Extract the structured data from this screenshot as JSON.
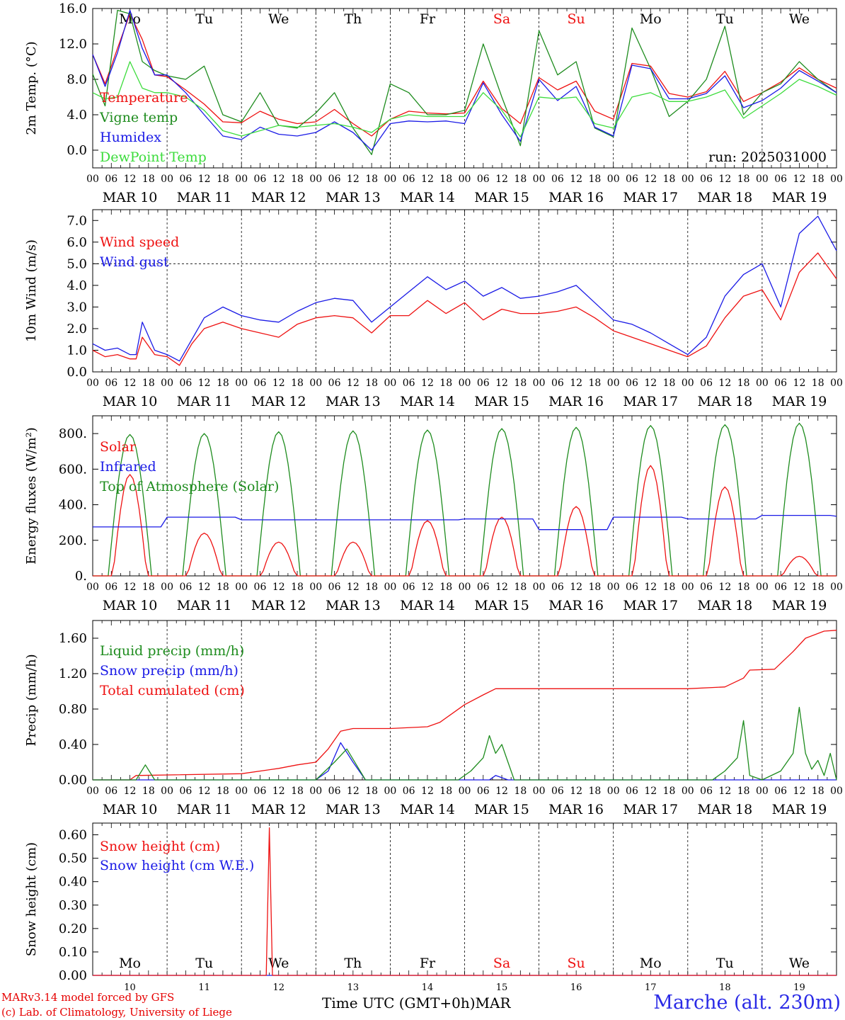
{
  "colors": {
    "red": "#ee1111",
    "green": "#1e8c1e",
    "blue": "#1a1ae6",
    "lightgreen": "#3cdc3c",
    "grid": "#000000"
  },
  "days": {
    "dow": [
      "Mo",
      "Tu",
      "We",
      "Th",
      "Fr",
      "Sa",
      "Su",
      "Mo",
      "Tu",
      "We"
    ],
    "dow_colors": [
      "#000000",
      "#000000",
      "#000000",
      "#000000",
      "#000000",
      "#ee1111",
      "#ee1111",
      "#000000",
      "#000000",
      "#000000"
    ],
    "dates": [
      "MAR 10",
      "MAR 11",
      "MAR 12",
      "MAR 13",
      "MAR 14",
      "MAR 15",
      "MAR 16",
      "MAR 17",
      "MAR 18",
      "MAR 19"
    ],
    "day_numbers": [
      "10",
      "11",
      "12",
      "13",
      "14",
      "15",
      "16",
      "17",
      "18",
      "19"
    ],
    "hour_ticks": [
      "00",
      "06",
      "12",
      "18"
    ],
    "final_hour": "00"
  },
  "run_label": "run: 2025031000",
  "xlabel": "Time UTC (GMT+0h)",
  "month_label": "MAR",
  "credits": {
    "line1": "MARv3.14 model forced by GFS",
    "line2": "(c) Lab. of Climatology, University of Liege"
  },
  "station": "Marche (alt. 230m)",
  "chart_data": [
    {
      "type": "line",
      "ylabel": "2m Temp. (°C)",
      "ylim": [
        -2.0,
        16.0
      ],
      "yticks": [
        "0.0",
        "4.0",
        "8.0",
        "12.0",
        "16.0"
      ],
      "hours": [
        0,
        4,
        8,
        12,
        16,
        20,
        24,
        30,
        36,
        42,
        48,
        54,
        60,
        66,
        72,
        78,
        84,
        90,
        96,
        102,
        108,
        114,
        120,
        126,
        132,
        138,
        144,
        150,
        156,
        162,
        168,
        174,
        180,
        186,
        192,
        198,
        204,
        210,
        216,
        222,
        228,
        234,
        240
      ],
      "series": [
        {
          "name": "Temperature",
          "color": "#ee1111",
          "values": [
            10.8,
            7.5,
            11.5,
            15.4,
            12.5,
            8.5,
            8.3,
            6.8,
            5.2,
            3.2,
            3.1,
            4.4,
            3.5,
            3.0,
            3.2,
            4.6,
            3.0,
            1.6,
            3.5,
            4.4,
            4.2,
            4.1,
            4.2,
            7.8,
            4.7,
            3.0,
            8.2,
            6.8,
            7.8,
            4.4,
            3.5,
            9.8,
            9.5,
            6.4,
            6.0,
            6.6,
            8.9,
            5.5,
            6.5,
            7.7,
            9.3,
            8.0,
            7.0
          ]
        },
        {
          "name": "Vigne temp",
          "color": "#1e8c1e",
          "values": [
            8.6,
            5.0,
            15.8,
            15.4,
            10.0,
            9.0,
            8.4,
            8.0,
            9.5,
            4.0,
            3.2,
            6.5,
            2.8,
            2.5,
            4.2,
            6.5,
            2.5,
            -0.5,
            7.5,
            6.5,
            4.0,
            4.0,
            4.5,
            12.0,
            6.0,
            0.5,
            13.5,
            8.5,
            10.0,
            2.5,
            1.5,
            13.8,
            9.2,
            3.8,
            5.5,
            8.0,
            14.0,
            4.0,
            6.5,
            7.5,
            10.0,
            8.0,
            6.5
          ]
        },
        {
          "name": "Humidex",
          "color": "#1a1ae6",
          "values": [
            10.8,
            7.2,
            11.0,
            15.8,
            11.5,
            8.5,
            8.5,
            6.5,
            4.0,
            1.6,
            1.2,
            2.6,
            1.8,
            1.6,
            2.0,
            3.2,
            2.0,
            0.0,
            3.0,
            3.3,
            3.2,
            3.3,
            3.0,
            7.6,
            4.0,
            1.0,
            8.0,
            5.6,
            7.2,
            2.6,
            1.6,
            9.6,
            9.2,
            5.8,
            5.8,
            6.4,
            8.4,
            4.8,
            5.6,
            7.0,
            9.0,
            7.8,
            6.5
          ]
        },
        {
          "name": "DewPoint Temp",
          "color": "#3cdc3c",
          "values": [
            6.5,
            5.8,
            6.0,
            10.0,
            7.0,
            6.5,
            6.5,
            6.0,
            4.5,
            2.2,
            1.6,
            2.2,
            2.8,
            2.6,
            2.8,
            3.0,
            2.6,
            2.0,
            3.5,
            4.0,
            3.8,
            3.8,
            3.8,
            6.5,
            4.5,
            1.5,
            6.0,
            5.8,
            6.0,
            3.0,
            2.5,
            6.0,
            6.5,
            5.5,
            5.5,
            6.0,
            6.8,
            3.6,
            5.0,
            6.4,
            8.0,
            7.2,
            6.2
          ]
        }
      ]
    },
    {
      "type": "line",
      "ylabel": "10m Wind (m/s)",
      "ylim": [
        0.0,
        7.5
      ],
      "yticks": [
        "0.0",
        "1.0",
        "2.0",
        "3.0",
        "4.0",
        "5.0",
        "6.0",
        "7.0"
      ],
      "reference_line": 5.0,
      "hours": [
        0,
        4,
        8,
        12,
        14,
        16,
        20,
        24,
        28,
        32,
        36,
        42,
        48,
        54,
        60,
        66,
        72,
        78,
        84,
        90,
        96,
        102,
        108,
        114,
        120,
        126,
        132,
        138,
        144,
        150,
        156,
        162,
        168,
        174,
        180,
        186,
        192,
        198,
        204,
        210,
        216,
        222,
        228,
        234,
        240
      ],
      "series": [
        {
          "name": "Wind speed",
          "color": "#ee1111",
          "values": [
            1.0,
            0.7,
            0.8,
            0.6,
            0.6,
            1.6,
            0.8,
            0.7,
            0.3,
            1.3,
            2.0,
            2.3,
            2.0,
            1.8,
            1.6,
            2.2,
            2.5,
            2.6,
            2.5,
            1.8,
            2.6,
            2.6,
            3.3,
            2.7,
            3.2,
            2.4,
            2.9,
            2.7,
            2.7,
            2.8,
            3.0,
            2.5,
            1.9,
            1.6,
            1.3,
            1.0,
            0.7,
            1.2,
            2.5,
            3.5,
            3.8,
            2.4,
            4.6,
            5.5,
            4.3
          ]
        },
        {
          "name": "Wind gust",
          "color": "#1a1ae6",
          "values": [
            1.3,
            1.0,
            1.1,
            0.8,
            0.8,
            2.3,
            1.0,
            0.8,
            0.5,
            1.5,
            2.5,
            3.0,
            2.6,
            2.4,
            2.3,
            2.8,
            3.2,
            3.4,
            3.3,
            2.3,
            3.0,
            3.7,
            4.4,
            3.8,
            4.2,
            3.5,
            3.9,
            3.4,
            3.5,
            3.7,
            4.0,
            3.2,
            2.4,
            2.2,
            1.8,
            1.3,
            0.8,
            1.6,
            3.5,
            4.5,
            5.0,
            3.0,
            6.4,
            7.2,
            5.6
          ]
        }
      ]
    },
    {
      "type": "line",
      "ylabel": "Energy fluxes (W/m²)",
      "ylim": [
        0,
        900
      ],
      "yticks": [
        "0.",
        "200.",
        "400.",
        "600.",
        "800."
      ],
      "series": [
        {
          "name": "Solar",
          "color": "#ee1111",
          "peaks": [
            570,
            240,
            190,
            190,
            310,
            330,
            390,
            620,
            500,
            110
          ]
        },
        {
          "name": "Infrared",
          "color": "#1a1ae6",
          "values_daily": [
            275,
            330,
            315,
            315,
            315,
            320,
            260,
            330,
            320,
            340
          ],
          "final": 335
        },
        {
          "name": "Top of Atmosphere (Solar)",
          "color": "#1e8c1e",
          "peaks": [
            795,
            800,
            810,
            815,
            820,
            828,
            835,
            845,
            850,
            858
          ]
        }
      ]
    },
    {
      "type": "line",
      "ylabel": "Precip (mm/h)",
      "ylim": [
        0.0,
        1.8
      ],
      "yticks": [
        "0.00",
        "0.40",
        "0.80",
        "1.20",
        "1.60"
      ],
      "series": [
        {
          "name": "Liquid precip (mm/h)",
          "color": "#1e8c1e",
          "points": [
            [
              0,
              0
            ],
            [
              14,
              0
            ],
            [
              17,
              0.17
            ],
            [
              20,
              0
            ],
            [
              48,
              0
            ],
            [
              72,
              0
            ],
            [
              78,
              0.2
            ],
            [
              82,
              0.35
            ],
            [
              88,
              0
            ],
            [
              118,
              0
            ],
            [
              122,
              0.1
            ],
            [
              126,
              0.25
            ],
            [
              128,
              0.5
            ],
            [
              130,
              0.3
            ],
            [
              132,
              0.4
            ],
            [
              134,
              0.2
            ],
            [
              136,
              0.0
            ],
            [
              200,
              0
            ],
            [
              204,
              0.1
            ],
            [
              208,
              0.25
            ],
            [
              210,
              0.67
            ],
            [
              212,
              0.05
            ],
            [
              216,
              0
            ],
            [
              222,
              0.1
            ],
            [
              226,
              0.3
            ],
            [
              228,
              0.82
            ],
            [
              230,
              0.3
            ],
            [
              232,
              0.12
            ],
            [
              234,
              0.22
            ],
            [
              236,
              0.05
            ],
            [
              238,
              0.3
            ],
            [
              240,
              0.0
            ]
          ]
        },
        {
          "name": "Snow precip (mm/h)",
          "color": "#1a1ae6",
          "points": [
            [
              0,
              0
            ],
            [
              72,
              0
            ],
            [
              76,
              0.1
            ],
            [
              80,
              0.42
            ],
            [
              84,
              0.2
            ],
            [
              88,
              0
            ],
            [
              128,
              0
            ],
            [
              130,
              0.05
            ],
            [
              134,
              0
            ],
            [
              240,
              0
            ]
          ]
        },
        {
          "name": "Total cumulated (cm)",
          "color": "#ee1111",
          "points": [
            [
              0,
              0
            ],
            [
              12,
              0
            ],
            [
              14,
              0.05
            ],
            [
              48,
              0.07
            ],
            [
              60,
              0.13
            ],
            [
              66,
              0.17
            ],
            [
              72,
              0.2
            ],
            [
              76,
              0.35
            ],
            [
              80,
              0.55
            ],
            [
              84,
              0.58
            ],
            [
              96,
              0.58
            ],
            [
              108,
              0.6
            ],
            [
              112,
              0.65
            ],
            [
              120,
              0.85
            ],
            [
              126,
              0.96
            ],
            [
              130,
              1.03
            ],
            [
              144,
              1.03
            ],
            [
              156,
              1.03
            ],
            [
              192,
              1.03
            ],
            [
              204,
              1.05
            ],
            [
              210,
              1.15
            ],
            [
              212,
              1.24
            ],
            [
              220,
              1.25
            ],
            [
              226,
              1.45
            ],
            [
              230,
              1.6
            ],
            [
              236,
              1.68
            ],
            [
              240,
              1.69
            ]
          ]
        }
      ]
    },
    {
      "type": "line",
      "ylabel": "Snow height (cm)",
      "ylim": [
        0.0,
        0.65
      ],
      "yticks": [
        "0.00",
        "0.10",
        "0.20",
        "0.30",
        "0.40",
        "0.50",
        "0.60"
      ],
      "series": [
        {
          "name": "Snow height (cm)",
          "color": "#ee1111",
          "points": [
            [
              0,
              0
            ],
            [
              56,
              0
            ],
            [
              57,
              0.63
            ],
            [
              58,
              0
            ],
            [
              240,
              0
            ]
          ]
        },
        {
          "name": "Snow height (cm W.E.)",
          "color": "#1a1ae6",
          "points": [
            [
              0,
              0
            ],
            [
              240,
              0
            ]
          ]
        }
      ]
    }
  ]
}
